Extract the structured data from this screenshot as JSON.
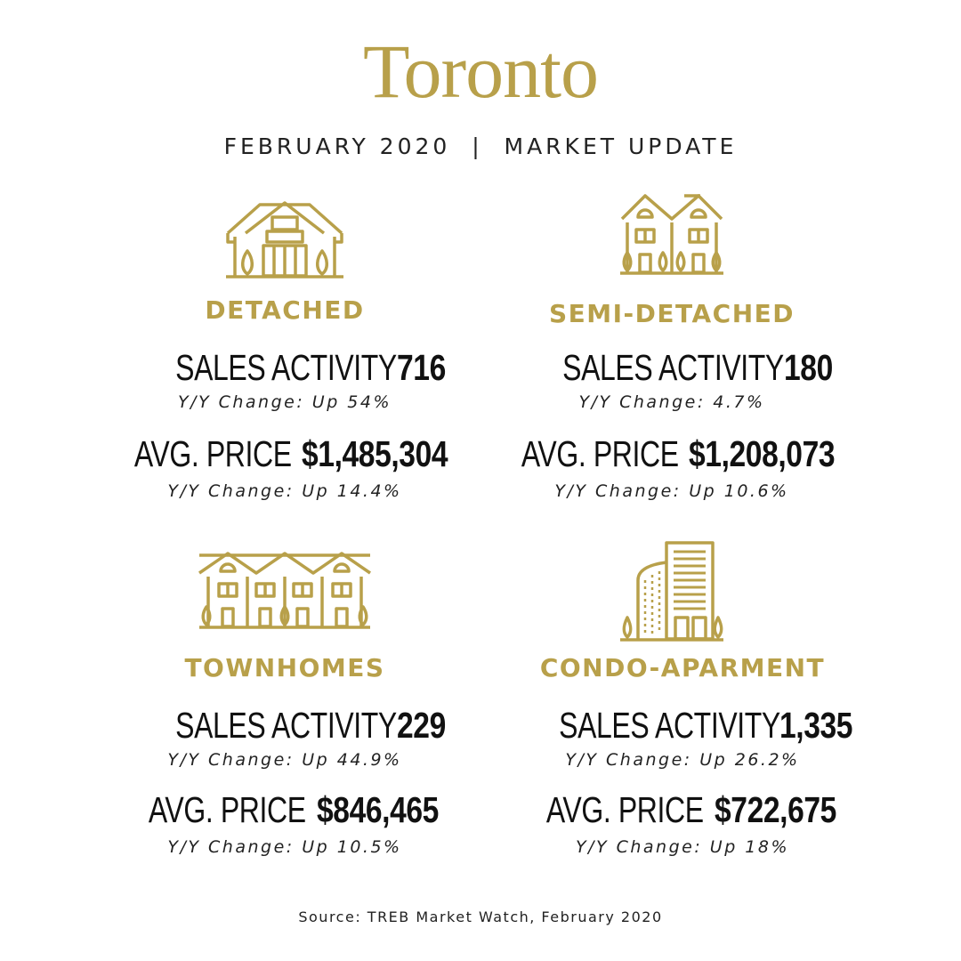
{
  "header": {
    "title": "Toronto",
    "subtitle": "FEBRUARY 2020  |  MARKET UPDATE"
  },
  "colors": {
    "accent": "#b8a04a",
    "text": "#111111"
  },
  "sections": [
    {
      "category": "DETACHED",
      "icon": "detached-house-icon",
      "sales_label": "SALES ACTIVITY",
      "sales_value": "716",
      "sales_change": "Y/Y Change: Up 54%",
      "price_label": "AVG. PRICE",
      "price_value": "$1,485,304",
      "price_change": "Y/Y Change: Up 14.4%"
    },
    {
      "category": "SEMI-DETACHED",
      "icon": "semi-detached-house-icon",
      "sales_label": "SALES ACTIVITY",
      "sales_value": "180",
      "sales_change": "Y/Y Change: 4.7%",
      "price_label": "AVG. PRICE",
      "price_value": "$1,208,073",
      "price_change": "Y/Y Change: Up 10.6%"
    },
    {
      "category": "TOWNHOMES",
      "icon": "townhomes-icon",
      "sales_label": "SALES ACTIVITY",
      "sales_value": "229",
      "sales_change": "Y/Y Change: Up 44.9%",
      "price_label": "AVG. PRICE",
      "price_value": "$846,465",
      "price_change": "Y/Y Change: Up 10.5%"
    },
    {
      "category": "CONDO-APARMENT",
      "icon": "condo-building-icon",
      "sales_label": "SALES ACTIVITY",
      "sales_value": "1,335",
      "sales_change": "Y/Y Change: Up 26.2%",
      "price_label": "AVG. PRICE",
      "price_value": "$722,675",
      "price_change": "Y/Y Change: Up 18%"
    }
  ],
  "footer": {
    "source": "Source: TREB Market Watch, February 2020"
  }
}
